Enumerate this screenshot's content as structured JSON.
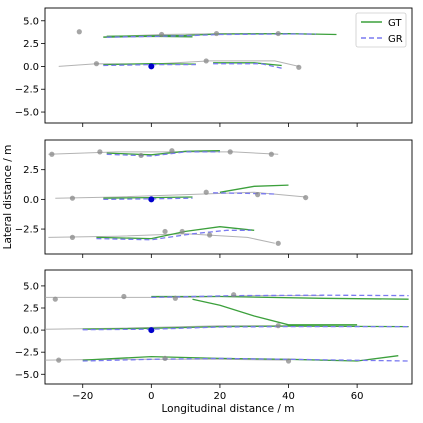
{
  "chart_data": [
    {
      "type": "line",
      "title": "",
      "xlabel": "",
      "ylabel": "",
      "xlim": [
        -31,
        76
      ],
      "ylim": [
        -6.2,
        6.4
      ],
      "yticks": [
        5.0,
        2.5,
        0.0,
        -2.5,
        -5.0
      ],
      "ytick_labels": [
        "5.0",
        "2.5",
        "0.0",
        "−2.5",
        "−5.0"
      ],
      "xticks": [
        -20,
        0,
        20,
        40,
        60
      ],
      "xtick_labels": [],
      "legend": {
        "position": "top-right",
        "entries": [
          "GT",
          "GR"
        ]
      },
      "ego": [
        0,
        0
      ],
      "series": [
        {
          "name": "GT",
          "points": [
            [
              -13,
              3.3
            ],
            [
              10,
              3.4
            ],
            [
              20,
              3.55
            ],
            [
              40,
              3.6
            ],
            [
              54,
              3.5
            ]
          ]
        },
        {
          "name": "GT",
          "points": [
            [
              -14,
              3.2
            ],
            [
              0,
              3.3
            ],
            [
              12,
              3.25
            ]
          ]
        },
        {
          "name": "GR",
          "points": [
            [
              -13,
              3.2
            ],
            [
              10,
              3.35
            ],
            [
              20,
              3.5
            ],
            [
              40,
              3.55
            ],
            [
              48,
              3.55
            ]
          ]
        },
        {
          "name": "GT",
          "points": [
            [
              -14,
              0.2
            ],
            [
              0,
              0.3
            ],
            [
              13,
              0.25
            ]
          ]
        },
        {
          "name": "GR",
          "points": [
            [
              -14,
              0.1
            ],
            [
              0,
              0.2
            ],
            [
              13,
              0.2
            ]
          ]
        },
        {
          "name": "GT",
          "points": [
            [
              18,
              0.4
            ],
            [
              30,
              0.4
            ],
            [
              38,
              0.1
            ]
          ]
        },
        {
          "name": "GR",
          "points": [
            [
              18,
              0.3
            ],
            [
              32,
              0.3
            ],
            [
              38,
              -0.2
            ]
          ]
        }
      ],
      "gray_tracks": [
        [
          [
            -27,
            0.0
          ],
          [
            -16,
            0.3
          ],
          [
            0,
            0.25
          ],
          [
            17,
            0.6
          ],
          [
            36,
            0.6
          ],
          [
            43,
            0.0
          ]
        ],
        [
          [
            -14,
            3.25
          ],
          [
            3,
            3.5
          ],
          [
            20,
            3.6
          ],
          [
            38,
            3.6
          ],
          [
            48,
            3.5
          ]
        ]
      ],
      "gray_points": [
        [
          -21,
          3.8
        ],
        [
          3,
          3.5
        ],
        [
          19,
          3.6
        ],
        [
          37,
          3.6
        ],
        [
          -16,
          0.3
        ],
        [
          16,
          0.6
        ],
        [
          43,
          -0.1
        ]
      ]
    },
    {
      "type": "line",
      "title": "",
      "xlabel": "",
      "ylabel": "Lateral distance / m",
      "xlim": [
        -31,
        76
      ],
      "ylim": [
        -4.6,
        5.0
      ],
      "yticks": [
        2.5,
        0.0,
        -2.5
      ],
      "ytick_labels": [
        "2.5",
        "0.0",
        "−2.5"
      ],
      "xticks": [
        -20,
        0,
        20,
        40,
        60
      ],
      "xtick_labels": [],
      "ego": [
        0,
        0
      ],
      "series": [
        {
          "name": "GT",
          "points": [
            [
              -13,
              3.9
            ],
            [
              0,
              3.75
            ],
            [
              10,
              4.05
            ],
            [
              20,
              4.1
            ]
          ]
        },
        {
          "name": "GR",
          "points": [
            [
              -13,
              3.8
            ],
            [
              0,
              3.65
            ],
            [
              10,
              4.0
            ],
            [
              20,
              4.0
            ]
          ]
        },
        {
          "name": "GT",
          "points": [
            [
              -14,
              0.1
            ],
            [
              0,
              0.15
            ],
            [
              12,
              0.2
            ]
          ]
        },
        {
          "name": "GR",
          "points": [
            [
              -14,
              0.0
            ],
            [
              0,
              0.05
            ],
            [
              12,
              0.1
            ]
          ]
        },
        {
          "name": "GT",
          "points": [
            [
              20,
              0.6
            ],
            [
              30,
              1.1
            ],
            [
              40,
              1.2
            ]
          ]
        },
        {
          "name": "GR",
          "points": [
            [
              18,
              0.55
            ],
            [
              28,
              0.5
            ],
            [
              36,
              0.45
            ]
          ]
        },
        {
          "name": "GT",
          "points": [
            [
              -16,
              -3.2
            ],
            [
              0,
              -3.3
            ],
            [
              10,
              -2.7
            ],
            [
              20,
              -2.3
            ],
            [
              30,
              -2.6
            ]
          ]
        },
        {
          "name": "GR",
          "points": [
            [
              -16,
              -3.3
            ],
            [
              0,
              -3.4
            ],
            [
              12,
              -2.9
            ],
            [
              22,
              -2.6
            ],
            [
              29,
              -2.6
            ]
          ]
        }
      ],
      "gray_tracks": [
        [
          [
            -30,
            3.8
          ],
          [
            -10,
            4.0
          ],
          [
            24,
            4.0
          ],
          [
            37,
            3.8
          ]
        ],
        [
          [
            -28,
            0.1
          ],
          [
            -10,
            0.2
          ],
          [
            10,
            0.4
          ],
          [
            30,
            0.6
          ],
          [
            45,
            0.2
          ]
        ],
        [
          [
            -30,
            -3.2
          ],
          [
            -10,
            -3.1
          ],
          [
            10,
            -2.9
          ],
          [
            28,
            -3.2
          ],
          [
            36,
            -3.7
          ]
        ]
      ],
      "gray_points": [
        [
          -29,
          3.8
        ],
        [
          -15,
          4.0
        ],
        [
          -3,
          3.7
        ],
        [
          6,
          4.1
        ],
        [
          23,
          4.0
        ],
        [
          35,
          3.8
        ],
        [
          -23,
          0.1
        ],
        [
          16,
          0.6
        ],
        [
          31,
          0.4
        ],
        [
          45,
          0.15
        ],
        [
          -23,
          -3.2
        ],
        [
          4,
          -2.7
        ],
        [
          9,
          -2.7
        ],
        [
          17,
          -3.0
        ],
        [
          37,
          -3.7
        ]
      ]
    },
    {
      "type": "line",
      "title": "",
      "xlabel": "Longitudinal distance / m",
      "ylabel": "",
      "xlim": [
        -31,
        76
      ],
      "ylim": [
        -6.1,
        6.8
      ],
      "yticks": [
        5.0,
        2.5,
        0.0,
        -2.5,
        -5.0
      ],
      "ytick_labels": [
        "5.0",
        "2.5",
        "0.0",
        "−2.5",
        "−5.0"
      ],
      "xticks": [
        -20,
        0,
        20,
        40,
        60
      ],
      "xtick_labels": [
        "−20",
        "0",
        "20",
        "40",
        "60"
      ],
      "ego": [
        0,
        0
      ],
      "series": [
        {
          "name": "GT",
          "points": [
            [
              0,
              3.8
            ],
            [
              20,
              3.8
            ],
            [
              50,
              3.6
            ],
            [
              75,
              3.5
            ]
          ]
        },
        {
          "name": "GR",
          "points": [
            [
              0,
              3.7
            ],
            [
              25,
              3.9
            ],
            [
              50,
              3.95
            ],
            [
              75,
              3.9
            ]
          ]
        },
        {
          "name": "GT",
          "points": [
            [
              12,
              3.5
            ],
            [
              20,
              2.8
            ],
            [
              30,
              1.6
            ],
            [
              40,
              0.6
            ],
            [
              60,
              0.6
            ]
          ]
        },
        {
          "name": "GT",
          "points": [
            [
              -20,
              0.1
            ],
            [
              0,
              0.2
            ],
            [
              20,
              0.4
            ],
            [
              40,
              0.45
            ],
            [
              75,
              0.4
            ]
          ]
        },
        {
          "name": "GR",
          "points": [
            [
              -20,
              0.05
            ],
            [
              0,
              0.1
            ],
            [
              20,
              0.35
            ],
            [
              40,
              0.4
            ],
            [
              75,
              0.4
            ]
          ]
        },
        {
          "name": "GT",
          "points": [
            [
              -20,
              -3.4
            ],
            [
              0,
              -3.0
            ],
            [
              20,
              -3.2
            ],
            [
              40,
              -3.3
            ],
            [
              60,
              -3.5
            ],
            [
              72,
              -2.9
            ]
          ]
        },
        {
          "name": "GR",
          "points": [
            [
              -20,
              -3.5
            ],
            [
              0,
              -3.3
            ],
            [
              20,
              -3.2
            ],
            [
              40,
              -3.3
            ],
            [
              75,
              -3.5
            ]
          ]
        }
      ],
      "gray_tracks": [
        [
          [
            -31,
            3.7
          ],
          [
            -10,
            3.7
          ],
          [
            10,
            3.7
          ],
          [
            30,
            3.9
          ],
          [
            50,
            3.9
          ]
        ],
        [
          [
            -31,
            0.1
          ],
          [
            -10,
            0.2
          ],
          [
            20,
            0.5
          ],
          [
            40,
            0.5
          ]
        ],
        [
          [
            -31,
            -3.4
          ],
          [
            -10,
            -3.3
          ],
          [
            20,
            -3.3
          ],
          [
            40,
            -3.4
          ]
        ]
      ],
      "gray_points": [
        [
          -28,
          3.5
        ],
        [
          -8,
          3.8
        ],
        [
          7,
          3.6
        ],
        [
          24,
          4.0
        ],
        [
          -27,
          -3.4
        ],
        [
          4,
          -3.2
        ],
        [
          37,
          0.5
        ],
        [
          40,
          -3.5
        ]
      ]
    }
  ],
  "legend_labels": {
    "gt": "GT",
    "gr": "GR"
  },
  "colors": {
    "gt": "#3ca03c",
    "gr": "#7a7af0",
    "gray": "#a0a0a0",
    "ego": "#0000cc"
  }
}
